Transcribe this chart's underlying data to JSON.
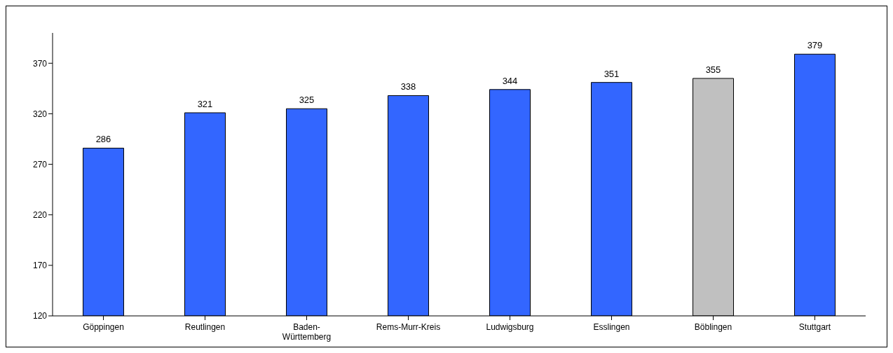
{
  "chart_data": {
    "type": "bar",
    "categories": [
      "Göppingen",
      "Reutlingen",
      "Baden-Württemberg",
      "Rems-Murr-Kreis",
      "Ludwigsburg",
      "Esslingen",
      "Böblingen",
      "Stuttgart"
    ],
    "values": [
      286,
      321,
      325,
      338,
      344,
      351,
      355,
      379
    ],
    "colors": [
      "#3366ff",
      "#3366ff",
      "#3366ff",
      "#3366ff",
      "#3366ff",
      "#3366ff",
      "#c0c0c0",
      "#3366ff"
    ],
    "ylim": [
      120,
      400
    ],
    "yticks": [
      120,
      170,
      220,
      270,
      320,
      370
    ],
    "data_labels": true
  }
}
